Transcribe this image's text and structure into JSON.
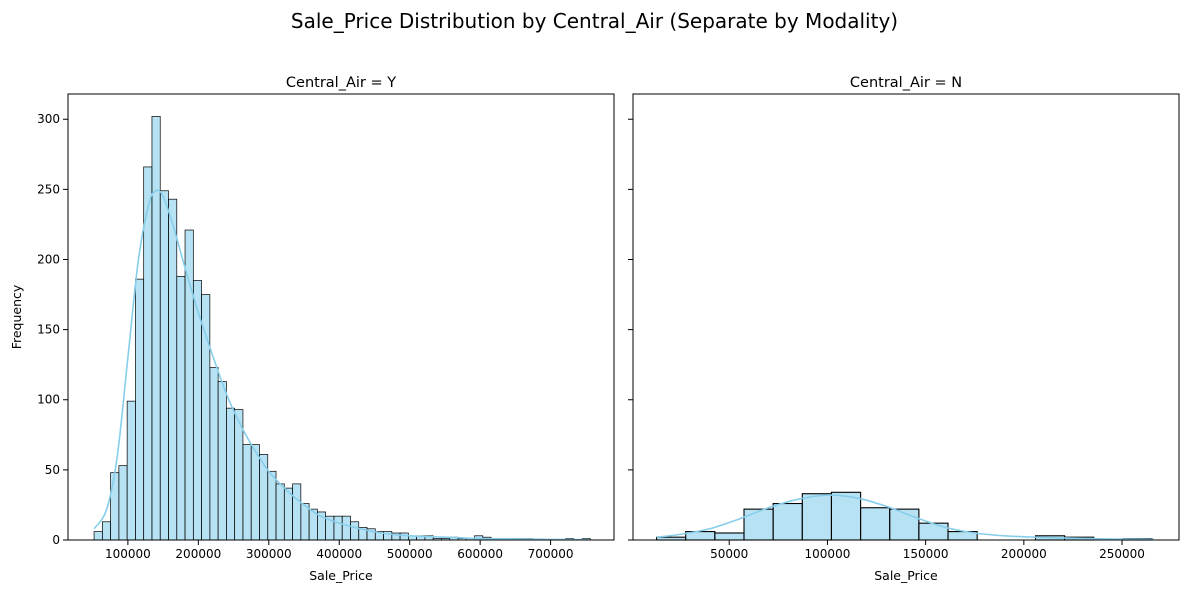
{
  "figure": {
    "title": "Sale_Price Distribution by Central_Air (Separate by Modality)"
  },
  "colors": {
    "bar_fill": "#87CEEB",
    "bar_fill_opacity": 0.6,
    "bar_edge": "#000000",
    "kde_line": "#87CEEB",
    "axes": "#000000"
  },
  "chart_data": [
    {
      "type": "histogram",
      "title": "Central_Air = Y",
      "xlabel": "Sale_Price",
      "ylabel": "Frequency",
      "xlim": [
        15000,
        790000
      ],
      "ylim": [
        0,
        318
      ],
      "xticks": [
        100000,
        200000,
        300000,
        400000,
        500000,
        600000,
        700000
      ],
      "xtick_labels": [
        "100000",
        "200000",
        "300000",
        "400000",
        "500000",
        "600000",
        "700000"
      ],
      "yticks": [
        0,
        50,
        100,
        150,
        200,
        250,
        300
      ],
      "ytick_labels": [
        "0",
        "50",
        "100",
        "150",
        "200",
        "250",
        "300"
      ],
      "bin_start": 52000,
      "bin_width": 11740,
      "counts": [
        6,
        13,
        48,
        53,
        99,
        186,
        266,
        302,
        249,
        243,
        188,
        221,
        185,
        175,
        123,
        113,
        94,
        93,
        68,
        68,
        61,
        49,
        40,
        37,
        40,
        26,
        22,
        20,
        17,
        17,
        17,
        13,
        9,
        8,
        6,
        6,
        5,
        5,
        3,
        3,
        3,
        1,
        1,
        2,
        1,
        1,
        3,
        2,
        1,
        1,
        1,
        1,
        1,
        0,
        0,
        0,
        0,
        1,
        0,
        1
      ],
      "kde": {
        "x": [
          52000,
          70000,
          85000,
          100000,
          115000,
          130000,
          140000,
          150000,
          165000,
          180000,
          200000,
          220000,
          240000,
          260000,
          280000,
          300000,
          320000,
          340000,
          370000,
          400000,
          430000,
          460000,
          500000,
          550000,
          600000,
          650000,
          700000,
          755000
        ],
        "y": [
          8,
          22,
          60,
          130,
          200,
          240,
          249,
          245,
          223,
          196,
          162,
          132,
          104,
          82,
          64,
          49,
          38,
          29,
          18,
          12,
          8,
          5,
          3,
          2,
          1,
          0.8,
          0.4,
          0.2
        ]
      }
    },
    {
      "type": "histogram",
      "title": "Central_Air = N",
      "xlabel": "Sale_Price",
      "ylabel": "",
      "xlim": [
        1000,
        279000
      ],
      "ylim": [
        0,
        318
      ],
      "xticks": [
        50000,
        100000,
        150000,
        200000,
        250000
      ],
      "xtick_labels": [
        "50000",
        "100000",
        "150000",
        "200000",
        "250000"
      ],
      "yticks": [
        0,
        50,
        100,
        150,
        200,
        250,
        300
      ],
      "ytick_labels": [],
      "bin_start": 13000,
      "bin_width": 14840,
      "counts": [
        2,
        6,
        5,
        22,
        26,
        33,
        34,
        23,
        22,
        12,
        6,
        0,
        0,
        3,
        2,
        0,
        1
      ],
      "kde": {
        "x": [
          13000,
          25000,
          40000,
          55000,
          70000,
          85000,
          100000,
          115000,
          130000,
          145000,
          160000,
          175000,
          190000,
          205000,
          220000,
          240000,
          266000
        ],
        "y": [
          2,
          4,
          8,
          15,
          23,
          29,
          32,
          30,
          24,
          16,
          9,
          5,
          3,
          2,
          1.5,
          0.8,
          0.5
        ]
      }
    }
  ]
}
